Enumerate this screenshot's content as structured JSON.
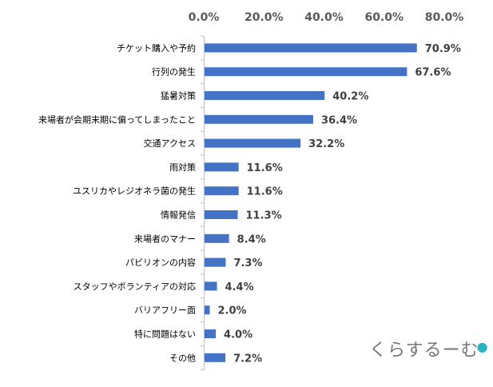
{
  "chart_data": {
    "type": "bar",
    "orientation": "horizontal",
    "xlim": [
      0,
      80
    ],
    "x_ticks": [
      "0.0%",
      "20.0%",
      "40.0%",
      "60.0%",
      "80.0%"
    ],
    "tick_position": "top",
    "grid": false,
    "bar_color": "#4472c4",
    "categories": [
      "チケット購入や予約",
      "行列の発生",
      "猛暑対策",
      "来場者が会期末期に偏ってしまったこと",
      "交通アクセス",
      "雨対策",
      "ユスリカやレジオネラ菌の発生",
      "情報発信",
      "来場者のマナー",
      "パビリオンの内容",
      "スタッフやボランティアの対応",
      "バリアフリー面",
      "特に問題はない",
      "その他"
    ],
    "values": [
      70.9,
      67.6,
      40.2,
      36.4,
      32.2,
      11.6,
      11.6,
      11.3,
      8.4,
      7.3,
      4.4,
      2.0,
      4.0,
      7.2
    ],
    "data_labels": [
      "70.9%",
      "67.6%",
      "40.2%",
      "36.4%",
      "32.2%",
      "11.6%",
      "11.6%",
      "11.3%",
      "8.4%",
      "7.3%",
      "4.4%",
      "2.0%",
      "4.0%",
      "7.2%"
    ]
  },
  "logo": {
    "text": "くらするーむ"
  }
}
